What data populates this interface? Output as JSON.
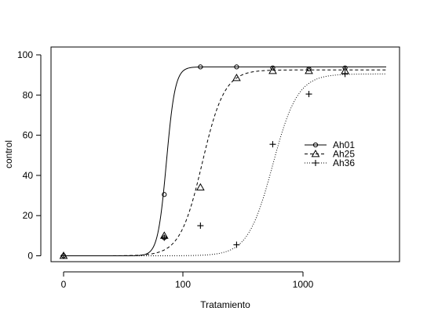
{
  "chart_data": {
    "type": "scatter",
    "xlabel": "Tratamiento",
    "ylabel": "control",
    "x_scale": "log",
    "x_ticks": [
      {
        "label": "0",
        "value": 0
      },
      {
        "label": "100",
        "value": 100
      },
      {
        "label": "1000",
        "value": 1000
      }
    ],
    "y_ticks": [
      0,
      20,
      40,
      60,
      80,
      100
    ],
    "ylim": [
      -5,
      104
    ],
    "legend_position": "right-center",
    "series": [
      {
        "name": "Ah01",
        "marker": "circle",
        "line_style": "solid",
        "curve": {
          "lower": 0,
          "upper": 94,
          "ed50": 73,
          "slope": 12
        },
        "points": [
          {
            "x": 0,
            "y": 0
          },
          {
            "x": 70,
            "y": 30.5
          },
          {
            "x": 70,
            "y": 9
          },
          {
            "x": 140,
            "y": 94
          },
          {
            "x": 280,
            "y": 94
          },
          {
            "x": 560,
            "y": 93.5
          },
          {
            "x": 1120,
            "y": 93
          },
          {
            "x": 2240,
            "y": 93.5
          }
        ]
      },
      {
        "name": "Ah25",
        "marker": "triangle",
        "line_style": "dashed",
        "curve": {
          "lower": 0,
          "upper": 92.5,
          "ed50": 145,
          "slope": 4.7
        },
        "points": [
          {
            "x": 0,
            "y": 0
          },
          {
            "x": 70,
            "y": 10
          },
          {
            "x": 140,
            "y": 34
          },
          {
            "x": 280,
            "y": 88.5
          },
          {
            "x": 560,
            "y": 92
          },
          {
            "x": 1120,
            "y": 92
          },
          {
            "x": 2240,
            "y": 92
          }
        ]
      },
      {
        "name": "Ah36",
        "marker": "plus",
        "line_style": "dotted",
        "curve": {
          "lower": 0,
          "upper": 90.5,
          "ed50": 560,
          "slope": 4.2
        },
        "points": [
          {
            "x": 0,
            "y": 0
          },
          {
            "x": 70,
            "y": 9
          },
          {
            "x": 140,
            "y": 15
          },
          {
            "x": 280,
            "y": 5.5
          },
          {
            "x": 560,
            "y": 55.5
          },
          {
            "x": 1120,
            "y": 80.5
          },
          {
            "x": 2240,
            "y": 90.5
          }
        ]
      }
    ]
  }
}
